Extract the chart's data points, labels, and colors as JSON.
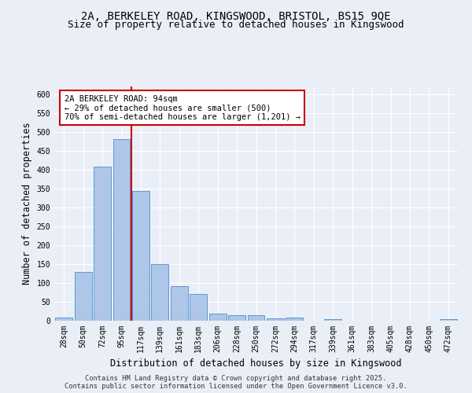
{
  "title_line1": "2A, BERKELEY ROAD, KINGSWOOD, BRISTOL, BS15 9QE",
  "title_line2": "Size of property relative to detached houses in Kingswood",
  "xlabel": "Distribution of detached houses by size in Kingswood",
  "ylabel": "Number of detached properties",
  "categories": [
    "28sqm",
    "50sqm",
    "72sqm",
    "95sqm",
    "117sqm",
    "139sqm",
    "161sqm",
    "183sqm",
    "206sqm",
    "228sqm",
    "250sqm",
    "272sqm",
    "294sqm",
    "317sqm",
    "339sqm",
    "361sqm",
    "383sqm",
    "405sqm",
    "428sqm",
    "450sqm",
    "472sqm"
  ],
  "values": [
    8,
    128,
    408,
    481,
    342,
    148,
    90,
    70,
    18,
    13,
    13,
    6,
    7,
    0,
    3,
    0,
    0,
    0,
    0,
    0,
    4
  ],
  "bar_color": "#aec6e8",
  "bar_edge_color": "#5b9bd5",
  "vline_x": 3.5,
  "vline_color": "#cc0000",
  "annotation_line1": "2A BERKELEY ROAD: 94sqm",
  "annotation_line2": "← 29% of detached houses are smaller (500)",
  "annotation_line3": "70% of semi-detached houses are larger (1,201) →",
  "annotation_box_color": "#cc0000",
  "ylim": [
    0,
    620
  ],
  "yticks": [
    0,
    50,
    100,
    150,
    200,
    250,
    300,
    350,
    400,
    450,
    500,
    550,
    600
  ],
  "bg_color": "#eaeff7",
  "plot_bg_color": "#eaeff7",
  "footer_text": "Contains HM Land Registry data © Crown copyright and database right 2025.\nContains public sector information licensed under the Open Government Licence v3.0.",
  "title_fontsize": 10,
  "subtitle_fontsize": 9,
  "axis_label_fontsize": 8.5,
  "tick_fontsize": 7,
  "annotation_fontsize": 7.5
}
